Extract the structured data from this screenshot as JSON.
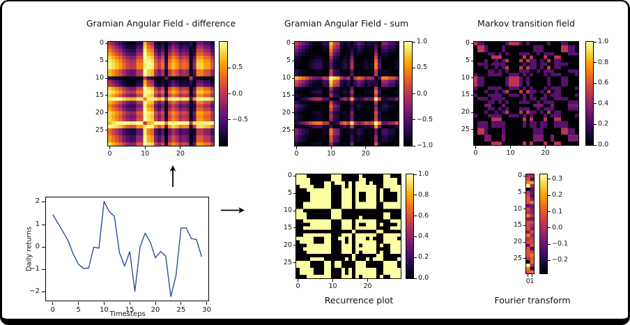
{
  "figure": {
    "background": "#ffffff",
    "frame_color": "#000000",
    "text_color": "#111111",
    "colormap": {
      "name": "inferno",
      "stops": [
        [
          0.0,
          "#000004"
        ],
        [
          0.1,
          "#160b39"
        ],
        [
          0.2,
          "#420a68"
        ],
        [
          0.3,
          "#6a176e"
        ],
        [
          0.4,
          "#932667"
        ],
        [
          0.5,
          "#bc3754"
        ],
        [
          0.6,
          "#dd513a"
        ],
        [
          0.7,
          "#f37819"
        ],
        [
          0.8,
          "#fca50a"
        ],
        [
          0.9,
          "#f6d746"
        ],
        [
          1.0,
          "#fcffa4"
        ]
      ]
    }
  },
  "chart_data": [
    {
      "type": "line",
      "title": "",
      "xlabel": "Timesteps",
      "ylabel": "Daily returns",
      "x": [
        0,
        1,
        2,
        3,
        4,
        5,
        6,
        7,
        8,
        9,
        10,
        11,
        12,
        13,
        14,
        15,
        16,
        17,
        18,
        19,
        20,
        21,
        22,
        23,
        24,
        25,
        26,
        27,
        28,
        29
      ],
      "y": [
        1.45,
        1.07,
        0.68,
        0.28,
        -0.32,
        -0.76,
        -0.95,
        -0.93,
        0.0,
        -0.05,
        2.03,
        1.58,
        1.37,
        -0.25,
        -0.85,
        -0.2,
        -1.97,
        0.0,
        0.62,
        0.22,
        -0.48,
        -0.2,
        -0.4,
        -2.2,
        -1.27,
        0.85,
        0.85,
        0.38,
        0.33,
        -0.43
      ],
      "xticks": [
        0,
        5,
        10,
        15,
        20,
        25,
        30
      ],
      "yticks": [
        -2,
        -1,
        0,
        1,
        2
      ],
      "ytick_labels": [
        "−2",
        "−1",
        "0",
        "1",
        "2"
      ],
      "xlim": [
        -1.45,
        30.45
      ],
      "ylim": [
        -2.41,
        2.24
      ],
      "line_color": "#2b4d9b",
      "grid": false
    },
    {
      "type": "heatmap",
      "title": "Gramian Angular Field - difference",
      "transform": "gramian_angular_difference",
      "derived_from": "chart_data.0.y",
      "size": 30,
      "xticks": [
        0,
        10,
        20
      ],
      "yticks": [
        0,
        5,
        10,
        15,
        20,
        25
      ],
      "colorbar": {
        "vmin": -1.0,
        "vmax": 1.0,
        "ticks": [
          0.5,
          0.0,
          -0.5
        ],
        "labels": [
          "0.5",
          "0.0",
          "−0.5"
        ]
      }
    },
    {
      "type": "heatmap",
      "title": "Gramian Angular Field - sum",
      "transform": "gramian_angular_sum",
      "derived_from": "chart_data.0.y",
      "size": 30,
      "xticks": [
        0,
        10,
        20
      ],
      "yticks": [
        0,
        5,
        10,
        15,
        20,
        25
      ],
      "colorbar": {
        "vmin": -1.0,
        "vmax": 1.0,
        "ticks": [
          1.0,
          0.5,
          0.0,
          -0.5,
          -1.0
        ],
        "labels": [
          "1.0",
          "0.5",
          "0.0",
          "−0.5",
          "−1.0"
        ]
      }
    },
    {
      "type": "heatmap",
      "title": "Markov transition field",
      "transform": "markov_transition_field",
      "derived_from": "chart_data.0.y",
      "size": 30,
      "n_bins": 8,
      "xticks": [
        0,
        10,
        20
      ],
      "yticks": [
        0,
        5,
        10,
        15,
        20,
        25
      ],
      "colorbar": {
        "vmin": 0.0,
        "vmax": 1.0,
        "ticks": [
          1.0,
          0.8,
          0.6,
          0.4,
          0.2,
          0.0
        ],
        "labels": [
          "1.0",
          "0.8",
          "0.6",
          "0.4",
          "0.2",
          "0.0"
        ]
      }
    },
    {
      "type": "heatmap",
      "title": "Recurrence plot",
      "transform": "recurrence_plot",
      "derived_from": "chart_data.0.y",
      "size": 30,
      "threshold_percentile": 50,
      "xticks": [
        0,
        10,
        20
      ],
      "yticks": [
        0,
        5,
        10,
        15,
        20,
        25
      ],
      "colorbar": {
        "vmin": 0.0,
        "vmax": 1.0,
        "ticks": [
          1.0,
          0.8,
          0.6,
          0.4,
          0.2,
          0.0
        ],
        "labels": [
          "1.0",
          "0.8",
          "0.6",
          "0.4",
          "0.2",
          "0.0"
        ]
      }
    },
    {
      "type": "heatmap",
      "title": "Fourier transform",
      "transform": "fourier_coefficients",
      "derived_from": "chart_data.0.y",
      "rows": 30,
      "cols": 2,
      "xticks": [
        0,
        1
      ],
      "yticks": [
        0,
        5,
        10,
        15,
        20,
        25
      ],
      "colorbar": {
        "vmin": -0.28,
        "vmax": 0.33,
        "ticks": [
          0.3,
          0.2,
          0.1,
          0.0,
          -0.1,
          -0.2
        ],
        "labels": [
          "0.3",
          "0.2",
          "0.1",
          "0.0",
          "−0.1",
          "−0.2"
        ]
      }
    }
  ],
  "arrows": [
    {
      "name": "up-arrow",
      "glyph": "↑"
    },
    {
      "name": "right-arrow",
      "glyph": "→"
    }
  ]
}
